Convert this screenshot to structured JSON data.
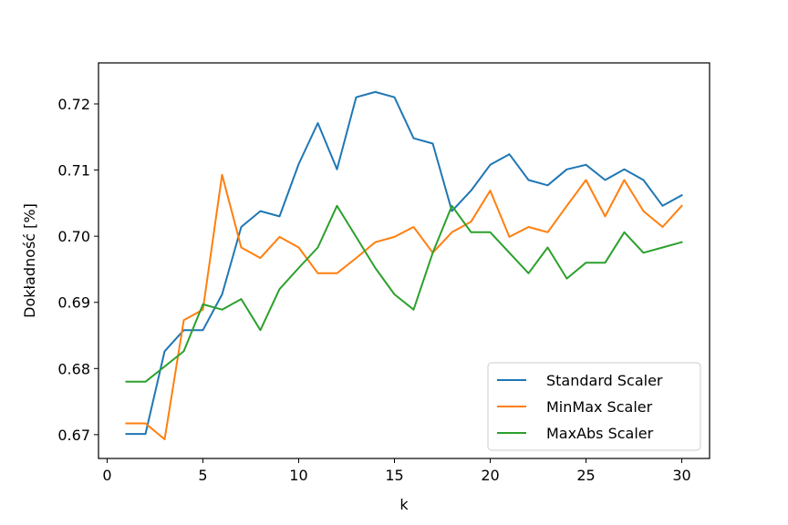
{
  "chart_data": {
    "type": "line",
    "title": "",
    "xlabel": "k",
    "ylabel": "Dokładność [%]",
    "xlim": [
      -0.45,
      31.45
    ],
    "ylim": [
      0.6664,
      0.7262
    ],
    "xticks": [
      0,
      5,
      10,
      15,
      20,
      25,
      30
    ],
    "xtick_labels": [
      "0",
      "5",
      "10",
      "15",
      "20",
      "25",
      "30"
    ],
    "yticks": [
      0.67,
      0.68,
      0.69,
      0.7,
      0.71,
      0.72
    ],
    "ytick_labels": [
      "0.67",
      "0.68",
      "0.69",
      "0.70",
      "0.71",
      "0.72"
    ],
    "grid": false,
    "legend_position": "lower-right",
    "x": [
      1,
      2,
      3,
      4,
      5,
      6,
      7,
      8,
      9,
      10,
      11,
      12,
      13,
      14,
      15,
      16,
      17,
      18,
      19,
      20,
      21,
      22,
      23,
      24,
      25,
      26,
      27,
      28,
      29,
      30
    ],
    "series": [
      {
        "name": "Standard Scaler",
        "color": "#1f77b4",
        "values": [
          0.6701,
          0.6701,
          0.6826,
          0.6858,
          0.6858,
          0.6912,
          0.7014,
          0.7038,
          0.703,
          0.7109,
          0.7171,
          0.7101,
          0.721,
          0.7218,
          0.721,
          0.7148,
          0.714,
          0.7038,
          0.7069,
          0.7108,
          0.7124,
          0.7085,
          0.7077,
          0.7101,
          0.7108,
          0.7085,
          0.7101,
          0.7085,
          0.7046,
          0.7062
        ]
      },
      {
        "name": "MinMax Scaler",
        "color": "#ff7f0e",
        "values": [
          0.6717,
          0.6717,
          0.6693,
          0.6873,
          0.6889,
          0.7093,
          0.6983,
          0.6967,
          0.6999,
          0.6983,
          0.6944,
          0.6944,
          0.6967,
          0.6991,
          0.6999,
          0.7014,
          0.6975,
          0.7006,
          0.7022,
          0.7069,
          0.6999,
          0.7014,
          0.7006,
          0.7046,
          0.7085,
          0.703,
          0.7085,
          0.7038,
          0.7014,
          0.7046
        ]
      },
      {
        "name": "MaxAbs Scaler",
        "color": "#2ca02c",
        "values": [
          0.678,
          0.678,
          0.6803,
          0.6826,
          0.6897,
          0.6889,
          0.6905,
          0.6858,
          0.692,
          0.6952,
          0.6983,
          0.7046,
          0.6999,
          0.6952,
          0.6912,
          0.6889,
          0.6975,
          0.7046,
          0.7006,
          0.7006,
          0.6975,
          0.6944,
          0.6983,
          0.6936,
          0.696,
          0.696,
          0.7006,
          0.6975,
          0.6983,
          0.6991
        ]
      }
    ]
  }
}
